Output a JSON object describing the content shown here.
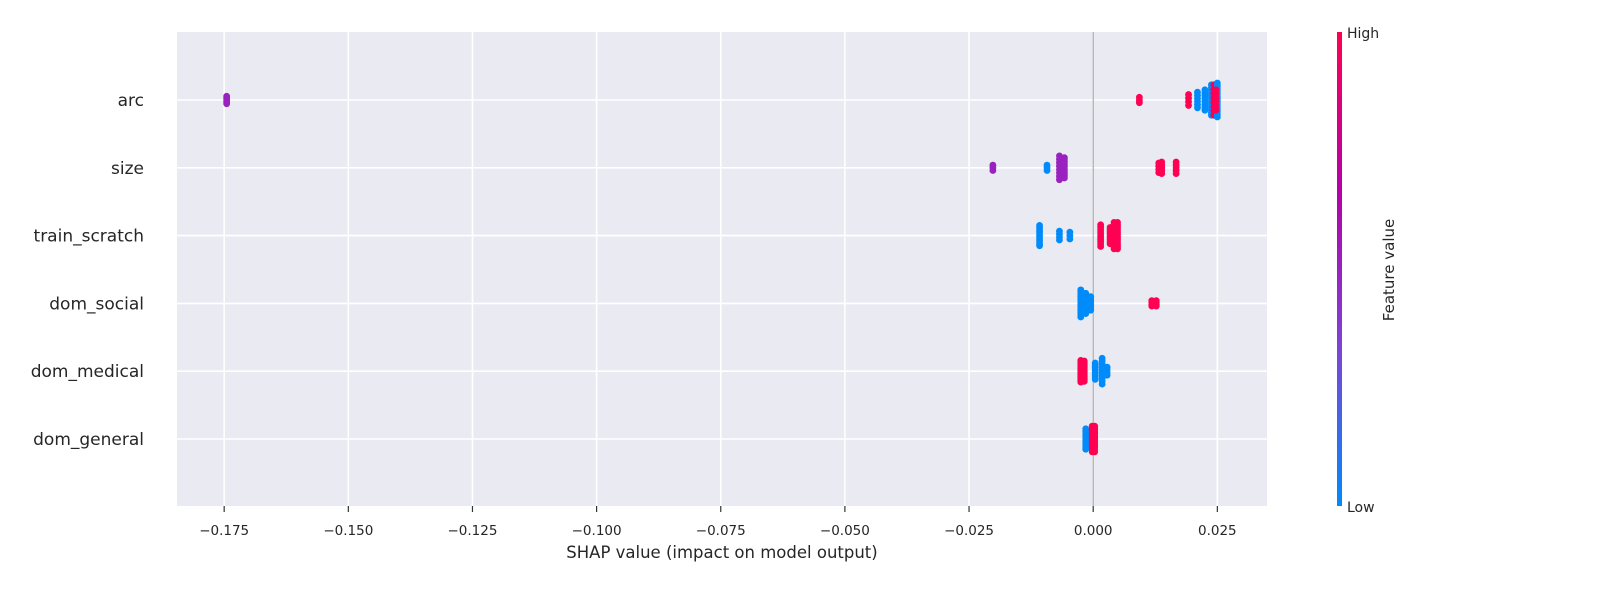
{
  "chart_data": {
    "type": "scatter",
    "subtype": "shap_beeswarm",
    "title": "",
    "xlabel": "SHAP value (impact on model output)",
    "ylabel": "",
    "xlim": [
      -0.1845,
      0.035
    ],
    "xticks": [
      -0.175,
      -0.15,
      -0.125,
      -0.1,
      -0.075,
      -0.05,
      -0.025,
      0.0,
      0.025
    ],
    "xtick_labels": [
      "−0.175",
      "−0.150",
      "−0.125",
      "−0.100",
      "−0.075",
      "−0.050",
      "−0.025",
      "0.000",
      "0.025"
    ],
    "grid": true,
    "background": "#eaeaf2",
    "colorbar": {
      "label": "Feature value",
      "high_label": "High",
      "low_label": "Low",
      "colors": [
        "#008bfb",
        "#7c44d6",
        "#b500a8",
        "#ff0052"
      ]
    },
    "features": [
      {
        "name": "arc",
        "clusters": [
          {
            "x": -0.1745,
            "spread": 0.11,
            "n": 5,
            "fv": 0.5
          },
          {
            "x": 0.0093,
            "spread": 0.08,
            "n": 3,
            "fv": 1.0
          },
          {
            "x": 0.0192,
            "spread": 0.16,
            "n": 4,
            "fv": 1.0
          },
          {
            "x": 0.021,
            "spread": 0.23,
            "n": 6,
            "fv": 0.0
          },
          {
            "x": 0.0225,
            "spread": 0.3,
            "n": 8,
            "fv": 0.0
          },
          {
            "x": 0.0238,
            "spread": 0.45,
            "n": 12,
            "fv": 0.0
          },
          {
            "x": 0.0243,
            "spread": 0.45,
            "n": 8,
            "fv": 1.0
          },
          {
            "x": 0.025,
            "spread": 0.5,
            "n": 14,
            "fv": 0.0
          },
          {
            "x": 0.0247,
            "spread": 0.3,
            "n": 6,
            "fv": 1.0
          }
        ]
      },
      {
        "name": "size",
        "clusters": [
          {
            "x": -0.0202,
            "spread": 0.08,
            "n": 3,
            "fv": 0.5
          },
          {
            "x": -0.0093,
            "spread": 0.08,
            "n": 3,
            "fv": 0.0
          },
          {
            "x": -0.0068,
            "spread": 0.35,
            "n": 8,
            "fv": 0.5
          },
          {
            "x": -0.0058,
            "spread": 0.3,
            "n": 10,
            "fv": 0.5
          },
          {
            "x": 0.0132,
            "spread": 0.14,
            "n": 4,
            "fv": 1.0
          },
          {
            "x": 0.0138,
            "spread": 0.17,
            "n": 5,
            "fv": 1.0
          },
          {
            "x": 0.0167,
            "spread": 0.17,
            "n": 5,
            "fv": 1.0
          }
        ]
      },
      {
        "name": "train_scratch",
        "clusters": [
          {
            "x": -0.0108,
            "spread": 0.3,
            "n": 10,
            "fv": 0.0
          },
          {
            "x": -0.0068,
            "spread": 0.13,
            "n": 4,
            "fv": 0.0
          },
          {
            "x": -0.0047,
            "spread": 0.1,
            "n": 3,
            "fv": 0.0
          },
          {
            "x": 0.0015,
            "spread": 0.32,
            "n": 10,
            "fv": 1.0
          },
          {
            "x": 0.0034,
            "spread": 0.24,
            "n": 8,
            "fv": 1.0
          },
          {
            "x": 0.0042,
            "spread": 0.39,
            "n": 12,
            "fv": 1.0
          },
          {
            "x": 0.0049,
            "spread": 0.39,
            "n": 12,
            "fv": 1.0
          }
        ]
      },
      {
        "name": "dom_social",
        "clusters": [
          {
            "x": -0.0025,
            "spread": 0.4,
            "n": 14,
            "fv": 0.0
          },
          {
            "x": -0.0015,
            "spread": 0.3,
            "n": 10,
            "fv": 0.0
          },
          {
            "x": -0.0005,
            "spread": 0.2,
            "n": 8,
            "fv": 0.0
          },
          {
            "x": 0.0118,
            "spread": 0.08,
            "n": 4,
            "fv": 1.0
          },
          {
            "x": 0.0127,
            "spread": 0.08,
            "n": 4,
            "fv": 1.0
          }
        ]
      },
      {
        "name": "dom_medical",
        "clusters": [
          {
            "x": -0.0025,
            "spread": 0.32,
            "n": 12,
            "fv": 1.0
          },
          {
            "x": -0.0018,
            "spread": 0.3,
            "n": 10,
            "fv": 1.0
          },
          {
            "x": 0.0004,
            "spread": 0.24,
            "n": 8,
            "fv": 0.0
          },
          {
            "x": 0.0018,
            "spread": 0.38,
            "n": 10,
            "fv": 0.0
          },
          {
            "x": 0.0028,
            "spread": 0.12,
            "n": 4,
            "fv": 0.0
          }
        ]
      },
      {
        "name": "dom_general",
        "clusters": [
          {
            "x": -0.0015,
            "spread": 0.3,
            "n": 10,
            "fv": 0.0
          },
          {
            "x": -0.0002,
            "spread": 0.38,
            "n": 12,
            "fv": 1.0
          },
          {
            "x": 0.0003,
            "spread": 0.38,
            "n": 12,
            "fv": 1.0
          }
        ]
      }
    ]
  }
}
